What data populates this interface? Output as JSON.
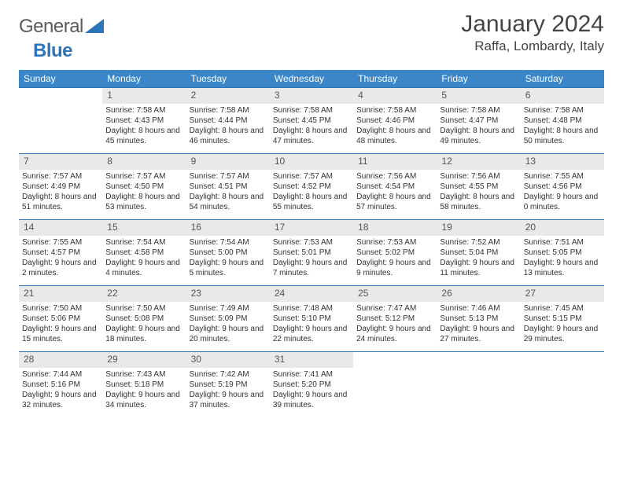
{
  "logo": {
    "part1": "General",
    "part2": "Blue"
  },
  "title": "January 2024",
  "subtitle": "Raffa, Lombardy, Italy",
  "colors": {
    "header_bg": "#3a86c8",
    "header_text": "#ffffff",
    "daynum_bg": "#e9e9e9",
    "week_border": "#2d74b8",
    "text": "#333333"
  },
  "day_headers": [
    "Sunday",
    "Monday",
    "Tuesday",
    "Wednesday",
    "Thursday",
    "Friday",
    "Saturday"
  ],
  "weeks": [
    [
      {
        "n": "",
        "sr": "",
        "ss": "",
        "dl": ""
      },
      {
        "n": "1",
        "sr": "Sunrise: 7:58 AM",
        "ss": "Sunset: 4:43 PM",
        "dl": "Daylight: 8 hours and 45 minutes."
      },
      {
        "n": "2",
        "sr": "Sunrise: 7:58 AM",
        "ss": "Sunset: 4:44 PM",
        "dl": "Daylight: 8 hours and 46 minutes."
      },
      {
        "n": "3",
        "sr": "Sunrise: 7:58 AM",
        "ss": "Sunset: 4:45 PM",
        "dl": "Daylight: 8 hours and 47 minutes."
      },
      {
        "n": "4",
        "sr": "Sunrise: 7:58 AM",
        "ss": "Sunset: 4:46 PM",
        "dl": "Daylight: 8 hours and 48 minutes."
      },
      {
        "n": "5",
        "sr": "Sunrise: 7:58 AM",
        "ss": "Sunset: 4:47 PM",
        "dl": "Daylight: 8 hours and 49 minutes."
      },
      {
        "n": "6",
        "sr": "Sunrise: 7:58 AM",
        "ss": "Sunset: 4:48 PM",
        "dl": "Daylight: 8 hours and 50 minutes."
      }
    ],
    [
      {
        "n": "7",
        "sr": "Sunrise: 7:57 AM",
        "ss": "Sunset: 4:49 PM",
        "dl": "Daylight: 8 hours and 51 minutes."
      },
      {
        "n": "8",
        "sr": "Sunrise: 7:57 AM",
        "ss": "Sunset: 4:50 PM",
        "dl": "Daylight: 8 hours and 53 minutes."
      },
      {
        "n": "9",
        "sr": "Sunrise: 7:57 AM",
        "ss": "Sunset: 4:51 PM",
        "dl": "Daylight: 8 hours and 54 minutes."
      },
      {
        "n": "10",
        "sr": "Sunrise: 7:57 AM",
        "ss": "Sunset: 4:52 PM",
        "dl": "Daylight: 8 hours and 55 minutes."
      },
      {
        "n": "11",
        "sr": "Sunrise: 7:56 AM",
        "ss": "Sunset: 4:54 PM",
        "dl": "Daylight: 8 hours and 57 minutes."
      },
      {
        "n": "12",
        "sr": "Sunrise: 7:56 AM",
        "ss": "Sunset: 4:55 PM",
        "dl": "Daylight: 8 hours and 58 minutes."
      },
      {
        "n": "13",
        "sr": "Sunrise: 7:55 AM",
        "ss": "Sunset: 4:56 PM",
        "dl": "Daylight: 9 hours and 0 minutes."
      }
    ],
    [
      {
        "n": "14",
        "sr": "Sunrise: 7:55 AM",
        "ss": "Sunset: 4:57 PM",
        "dl": "Daylight: 9 hours and 2 minutes."
      },
      {
        "n": "15",
        "sr": "Sunrise: 7:54 AM",
        "ss": "Sunset: 4:58 PM",
        "dl": "Daylight: 9 hours and 4 minutes."
      },
      {
        "n": "16",
        "sr": "Sunrise: 7:54 AM",
        "ss": "Sunset: 5:00 PM",
        "dl": "Daylight: 9 hours and 5 minutes."
      },
      {
        "n": "17",
        "sr": "Sunrise: 7:53 AM",
        "ss": "Sunset: 5:01 PM",
        "dl": "Daylight: 9 hours and 7 minutes."
      },
      {
        "n": "18",
        "sr": "Sunrise: 7:53 AM",
        "ss": "Sunset: 5:02 PM",
        "dl": "Daylight: 9 hours and 9 minutes."
      },
      {
        "n": "19",
        "sr": "Sunrise: 7:52 AM",
        "ss": "Sunset: 5:04 PM",
        "dl": "Daylight: 9 hours and 11 minutes."
      },
      {
        "n": "20",
        "sr": "Sunrise: 7:51 AM",
        "ss": "Sunset: 5:05 PM",
        "dl": "Daylight: 9 hours and 13 minutes."
      }
    ],
    [
      {
        "n": "21",
        "sr": "Sunrise: 7:50 AM",
        "ss": "Sunset: 5:06 PM",
        "dl": "Daylight: 9 hours and 15 minutes."
      },
      {
        "n": "22",
        "sr": "Sunrise: 7:50 AM",
        "ss": "Sunset: 5:08 PM",
        "dl": "Daylight: 9 hours and 18 minutes."
      },
      {
        "n": "23",
        "sr": "Sunrise: 7:49 AM",
        "ss": "Sunset: 5:09 PM",
        "dl": "Daylight: 9 hours and 20 minutes."
      },
      {
        "n": "24",
        "sr": "Sunrise: 7:48 AM",
        "ss": "Sunset: 5:10 PM",
        "dl": "Daylight: 9 hours and 22 minutes."
      },
      {
        "n": "25",
        "sr": "Sunrise: 7:47 AM",
        "ss": "Sunset: 5:12 PM",
        "dl": "Daylight: 9 hours and 24 minutes."
      },
      {
        "n": "26",
        "sr": "Sunrise: 7:46 AM",
        "ss": "Sunset: 5:13 PM",
        "dl": "Daylight: 9 hours and 27 minutes."
      },
      {
        "n": "27",
        "sr": "Sunrise: 7:45 AM",
        "ss": "Sunset: 5:15 PM",
        "dl": "Daylight: 9 hours and 29 minutes."
      }
    ],
    [
      {
        "n": "28",
        "sr": "Sunrise: 7:44 AM",
        "ss": "Sunset: 5:16 PM",
        "dl": "Daylight: 9 hours and 32 minutes."
      },
      {
        "n": "29",
        "sr": "Sunrise: 7:43 AM",
        "ss": "Sunset: 5:18 PM",
        "dl": "Daylight: 9 hours and 34 minutes."
      },
      {
        "n": "30",
        "sr": "Sunrise: 7:42 AM",
        "ss": "Sunset: 5:19 PM",
        "dl": "Daylight: 9 hours and 37 minutes."
      },
      {
        "n": "31",
        "sr": "Sunrise: 7:41 AM",
        "ss": "Sunset: 5:20 PM",
        "dl": "Daylight: 9 hours and 39 minutes."
      },
      {
        "n": "",
        "sr": "",
        "ss": "",
        "dl": ""
      },
      {
        "n": "",
        "sr": "",
        "ss": "",
        "dl": ""
      },
      {
        "n": "",
        "sr": "",
        "ss": "",
        "dl": ""
      }
    ]
  ]
}
